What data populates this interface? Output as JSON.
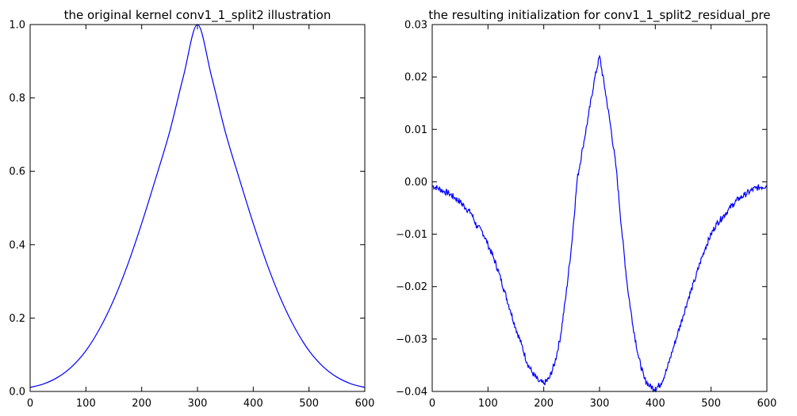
{
  "chart_data": [
    {
      "type": "line",
      "title": "the original kernel conv1_1_split2 illustration",
      "xlabel": "",
      "ylabel": "",
      "xlim": [
        0,
        600
      ],
      "ylim": [
        0.0,
        1.0
      ],
      "xticks": [
        0,
        100,
        200,
        300,
        400,
        500,
        600
      ],
      "xtick_labels": [
        "0",
        "100",
        "200",
        "300",
        "400",
        "500",
        "600"
      ],
      "yticks": [
        0.0,
        0.2,
        0.4,
        0.6,
        0.8,
        1.0
      ],
      "ytick_labels": [
        "0.0",
        "0.2",
        "0.4",
        "0.6",
        "0.8",
        "1.0"
      ],
      "grid": false,
      "color": "#0000ff",
      "series": [
        {
          "x": [
            0,
            25,
            50,
            75,
            100,
            125,
            150,
            175,
            200,
            225,
            250,
            275,
            300,
            325,
            350,
            375,
            400,
            425,
            450,
            475,
            500,
            525,
            550,
            575,
            600
          ],
          "y": [
            0.011,
            0.021,
            0.039,
            0.068,
            0.111,
            0.172,
            0.25,
            0.346,
            0.458,
            0.58,
            0.707,
            0.86,
            1.0,
            0.86,
            0.707,
            0.58,
            0.458,
            0.346,
            0.25,
            0.172,
            0.111,
            0.068,
            0.039,
            0.021,
            0.011
          ]
        }
      ]
    },
    {
      "type": "line",
      "title": "the resulting initialization for conv1_1_split2_residual_pre",
      "xlabel": "",
      "ylabel": "",
      "xlim": [
        0,
        600
      ],
      "ylim": [
        -0.04,
        0.03
      ],
      "xticks": [
        0,
        100,
        200,
        300,
        400,
        500,
        600
      ],
      "xtick_labels": [
        "0",
        "100",
        "200",
        "300",
        "400",
        "500",
        "600"
      ],
      "yticks": [
        -0.04,
        -0.03,
        -0.02,
        -0.01,
        0.0,
        0.01,
        0.02,
        0.03
      ],
      "ytick_labels": [
        "−0.04",
        "−0.03",
        "−0.02",
        "−0.01",
        "0.00",
        "0.01",
        "0.02",
        "0.03"
      ],
      "grid": false,
      "color": "#0000ff",
      "series": [
        {
          "x": [
            0,
            10,
            20,
            30,
            40,
            50,
            60,
            70,
            80,
            90,
            100,
            110,
            120,
            130,
            140,
            150,
            160,
            170,
            180,
            190,
            200,
            210,
            220,
            230,
            240,
            250,
            260,
            270,
            280,
            290,
            300,
            310,
            320,
            330,
            340,
            350,
            360,
            370,
            380,
            390,
            400,
            410,
            420,
            430,
            440,
            450,
            460,
            470,
            480,
            490,
            500,
            510,
            520,
            530,
            540,
            550,
            560,
            570,
            580,
            590,
            600
          ],
          "y": [
            -0.0008,
            -0.0012,
            -0.0018,
            -0.0022,
            -0.003,
            -0.0038,
            -0.005,
            -0.006,
            -0.0085,
            -0.0095,
            -0.012,
            -0.0145,
            -0.0175,
            -0.021,
            -0.0245,
            -0.028,
            -0.031,
            -0.0345,
            -0.0365,
            -0.038,
            -0.0385,
            -0.0375,
            -0.0345,
            -0.0295,
            -0.0215,
            -0.012,
            0.0005,
            0.0065,
            0.0125,
            0.019,
            0.024,
            0.0175,
            0.0105,
            0.0025,
            -0.0095,
            -0.02,
            -0.0275,
            -0.0335,
            -0.0375,
            -0.039,
            -0.0395,
            -0.0385,
            -0.036,
            -0.0325,
            -0.029,
            -0.0255,
            -0.022,
            -0.019,
            -0.0155,
            -0.0125,
            -0.01,
            -0.008,
            -0.0068,
            -0.0055,
            -0.0042,
            -0.0032,
            -0.0025,
            -0.0018,
            -0.0012,
            -0.001,
            -0.0007
          ]
        }
      ]
    }
  ]
}
